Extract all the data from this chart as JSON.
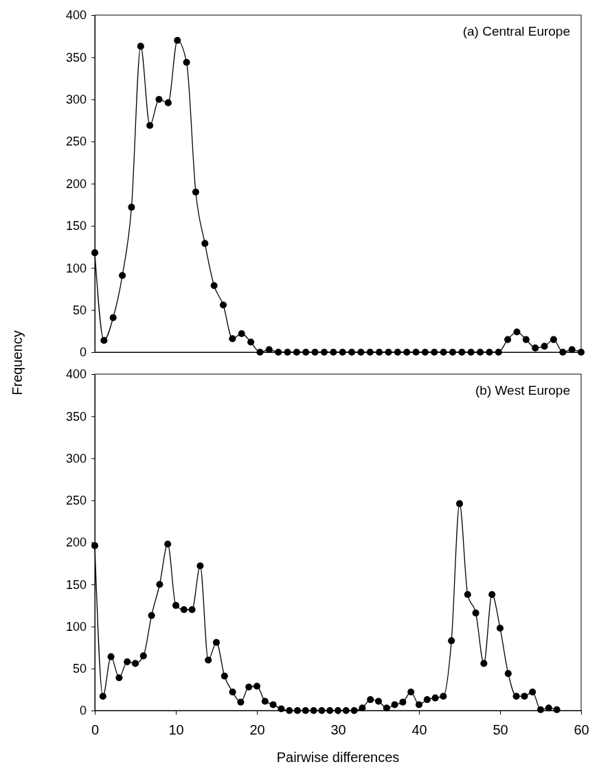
{
  "chart_data": [
    {
      "type": "line",
      "title": "(a)  Central Europe",
      "ylabel": "Frequency",
      "categories": [
        null,
        null,
        null,
        null,
        null,
        null,
        null,
        null,
        null,
        null,
        null,
        null,
        null,
        null,
        null,
        null,
        null,
        null,
        null,
        null,
        null,
        null,
        null,
        null,
        null,
        null,
        null,
        null,
        null,
        null,
        null,
        null,
        null,
        null,
        null,
        null,
        null,
        null,
        null,
        null,
        null,
        null,
        null,
        null,
        null,
        null,
        null,
        null,
        null,
        null,
        null,
        null,
        null,
        null
      ],
      "series": [
        {
          "color": "#000000",
          "values": [
            118,
            14,
            41,
            91,
            172,
            363,
            269,
            300,
            296,
            370,
            344,
            190,
            129,
            79,
            56,
            16,
            22,
            12,
            0,
            3,
            0,
            0,
            0,
            0,
            0,
            0,
            0,
            0,
            0,
            0,
            0,
            0,
            0,
            0,
            0,
            0,
            0,
            0,
            0,
            0,
            0,
            0,
            0,
            0,
            0,
            15,
            24,
            15,
            5,
            7,
            15,
            0,
            3,
            0
          ]
        }
      ],
      "ylim": [
        0,
        400
      ],
      "yticks": [
        0,
        50,
        100,
        150,
        200,
        250,
        300,
        350,
        400
      ],
      "tick_labels": "y",
      "marker": "circle",
      "line_style": "solid",
      "grid": false
    },
    {
      "type": "line",
      "title": "(b)  West Europe",
      "xlabel": "Pairwise differences",
      "x": [
        0,
        1,
        2,
        3,
        4,
        5,
        6,
        7,
        8,
        9,
        10,
        11,
        12,
        13,
        14,
        15,
        16,
        17,
        18,
        19,
        20,
        21,
        22,
        23,
        24,
        25,
        26,
        27,
        28,
        29,
        30,
        31,
        32,
        33,
        34,
        35,
        36,
        37,
        38,
        39,
        40,
        41,
        42,
        43,
        44,
        45,
        46,
        47,
        48,
        49,
        50,
        51,
        52,
        53,
        54,
        55,
        56,
        57
      ],
      "series": [
        {
          "color": "#000000",
          "values": [
            196,
            17,
            64,
            39,
            58,
            56,
            65,
            113,
            150,
            198,
            125,
            120,
            120,
            172,
            60,
            81,
            41,
            22,
            10,
            28,
            29,
            11,
            7,
            2,
            0,
            0,
            0,
            0,
            0,
            0,
            0,
            0,
            0,
            3,
            13,
            11,
            3,
            7,
            10,
            22,
            7,
            13,
            15,
            17,
            83,
            246,
            138,
            116,
            56,
            138,
            98,
            44,
            17,
            17,
            22,
            1,
            3,
            1
          ]
        }
      ],
      "xlim": [
        0,
        60
      ],
      "xticks": [
        0,
        10,
        20,
        30,
        40,
        50,
        60
      ],
      "ylim": [
        0,
        400
      ],
      "yticks": [
        0,
        50,
        100,
        150,
        200,
        250,
        300,
        350,
        400
      ],
      "marker": "circle",
      "line_style": "solid",
      "grid": false
    }
  ]
}
